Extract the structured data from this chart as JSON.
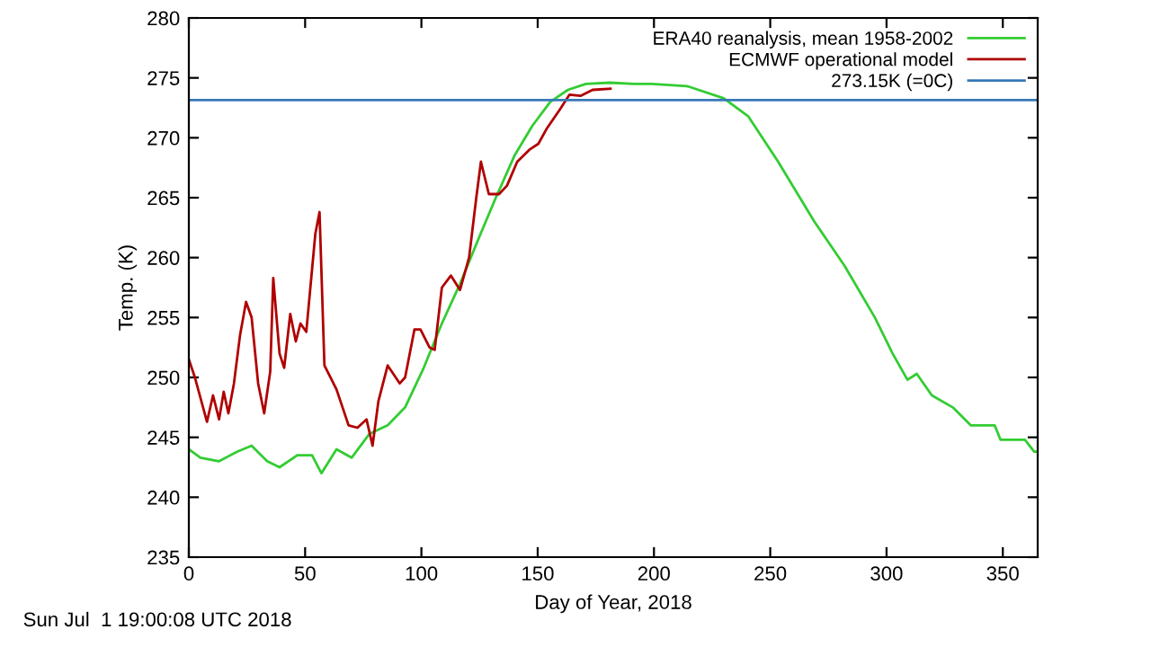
{
  "chart_data": {
    "type": "line",
    "xlabel": "Day of Year, 2018",
    "ylabel": "Temp. (K)",
    "xlim": [
      0,
      365
    ],
    "ylim": [
      235,
      280
    ],
    "xticks": [
      0,
      50,
      100,
      150,
      200,
      250,
      300,
      350
    ],
    "yticks": [
      235,
      240,
      245,
      250,
      255,
      260,
      265,
      270,
      275,
      280
    ],
    "grid": false,
    "legend": "top right",
    "marker": "none",
    "line_style": "solid",
    "series": [
      {
        "name": "ERA40 reanalysis, mean 1958-2002",
        "color": "#33cc33",
        "x": [
          0,
          5,
          13,
          20.7,
          27,
          33.7,
          39,
          46.6,
          53,
          57,
          63.5,
          70,
          77.7,
          85.5,
          93,
          101,
          108.8,
          116.6,
          124.4,
          132,
          140,
          147.7,
          155.4,
          163,
          170.7,
          181,
          191.5,
          199,
          214.5,
          230,
          240.5,
          253.4,
          269,
          282,
          295,
          302.6,
          309,
          313,
          319.5,
          328.5,
          336.2,
          346.5,
          349,
          359.5,
          363.5,
          365
        ],
        "values": [
          244,
          243.3,
          243,
          243.8,
          244.3,
          243,
          242.5,
          243.5,
          243.5,
          242,
          244,
          243.3,
          245.3,
          246,
          247.5,
          250.8,
          254.5,
          257.8,
          261.5,
          265,
          268.5,
          271,
          273,
          274,
          274.5,
          274.6,
          274.5,
          274.5,
          274.3,
          273.3,
          271.8,
          268,
          263,
          259.3,
          255,
          252,
          249.8,
          250.3,
          248.5,
          247.5,
          246,
          246,
          244.8,
          244.8,
          243.8,
          243.8
        ]
      },
      {
        "name": "ECMWF operational model",
        "color": "#b00000",
        "x": [
          0,
          2.6,
          7.8,
          10.4,
          13,
          15,
          17,
          19.4,
          22,
          24.6,
          27,
          29.8,
          32.4,
          35,
          36.3,
          39,
          41,
          43.6,
          46,
          48,
          50.5,
          54.4,
          56.2,
          58.3,
          63.5,
          68.7,
          72.5,
          76.4,
          79,
          81.5,
          85.5,
          90.7,
          93,
          97,
          99.6,
          103.5,
          105.7,
          108.8,
          112.7,
          116.6,
          120.5,
          123.6,
          125.6,
          129,
          133.4,
          136.8,
          141.2,
          146.4,
          150.3,
          154,
          159.3,
          163.7,
          168.4,
          173.6,
          181.3
        ],
        "values": [
          251.5,
          250,
          246.3,
          248.5,
          246.5,
          248.8,
          247,
          249.5,
          253.5,
          256.3,
          255,
          249.5,
          247,
          250.5,
          258.3,
          252,
          250.8,
          255.3,
          253,
          254.5,
          253.8,
          262,
          263.8,
          251,
          249,
          246,
          245.8,
          246.5,
          244.3,
          248,
          251,
          249.5,
          250,
          254,
          254,
          252.5,
          252.3,
          257.5,
          258.5,
          257.3,
          260,
          265,
          268,
          265.3,
          265.3,
          266,
          268,
          269,
          269.5,
          270.8,
          272.3,
          273.6,
          273.5,
          274,
          274.1
        ]
      }
    ],
    "ref_lines": [
      {
        "axis": "y",
        "value": 273.15,
        "label": "273.15K (=0C)",
        "color": "#3778b8",
        "line_style": "solid"
      }
    ],
    "annotations": [
      "Sun Jul  1 19:00:08 UTC 2018"
    ]
  }
}
